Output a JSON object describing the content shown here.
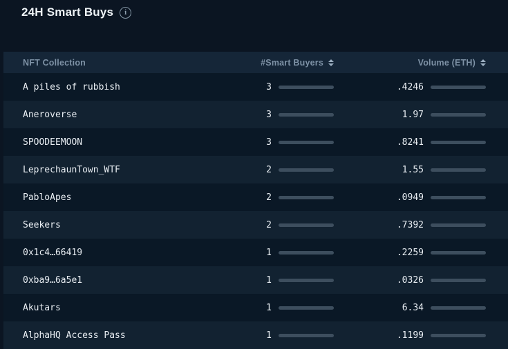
{
  "panel": {
    "title": "24H Smart Buys"
  },
  "table": {
    "columns": [
      {
        "label": "NFT Collection",
        "sortable": false
      },
      {
        "label": "#Smart Buyers",
        "sortable": true
      },
      {
        "label": "Volume (ETH)",
        "sortable": true
      }
    ],
    "rows": [
      {
        "name": "A piles of rubbish",
        "buyers": "3",
        "volume": ".4246"
      },
      {
        "name": "Aneroverse",
        "buyers": "3",
        "volume": "1.97"
      },
      {
        "name": "SPOODEEMOON",
        "buyers": "3",
        "volume": ".8241"
      },
      {
        "name": "LeprechaunTown_WTF",
        "buyers": "2",
        "volume": "1.55"
      },
      {
        "name": "PabloApes",
        "buyers": "2",
        "volume": ".0949"
      },
      {
        "name": "Seekers",
        "buyers": "2",
        "volume": ".7392"
      },
      {
        "name": "0x1c4…66419",
        "buyers": "1",
        "volume": ".2259"
      },
      {
        "name": "0xba9…6a5e1",
        "buyers": "1",
        "volume": ".0326"
      },
      {
        "name": "Akutars",
        "buyers": "1",
        "volume": "6.34"
      },
      {
        "name": "AlphaHQ Access Pass",
        "buyers": "1",
        "volume": ".1199"
      }
    ]
  },
  "chart_data": {
    "type": "table",
    "title": "24H Smart Buys",
    "categories": [
      "A piles of rubbish",
      "Aneroverse",
      "SPOODEEMOON",
      "LeprechaunTown_WTF",
      "PabloApes",
      "Seekers",
      "0x1c4…66419",
      "0xba9…6a5e1",
      "Akutars",
      "AlphaHQ Access Pass"
    ],
    "series": [
      {
        "name": "#Smart Buyers",
        "values": [
          3,
          3,
          3,
          2,
          2,
          2,
          1,
          1,
          1,
          1
        ]
      },
      {
        "name": "Volume (ETH)",
        "values": [
          0.4246,
          1.97,
          0.8241,
          1.55,
          0.0949,
          0.7392,
          0.2259,
          0.0326,
          6.34,
          0.1199
        ]
      }
    ],
    "buyers_bar_max": 3,
    "volume_bar_max": 15
  },
  "icons": {
    "info": "i"
  },
  "colors": {
    "page_bg": "#0b1522",
    "header_bg": "#152638",
    "row_dark": "#0a1826",
    "row_light": "#122231",
    "bar_fill": "#8ccaef",
    "bar_track": "#3d4e5e",
    "header_text": "#7e92a6",
    "body_text": "#e9eef3"
  }
}
